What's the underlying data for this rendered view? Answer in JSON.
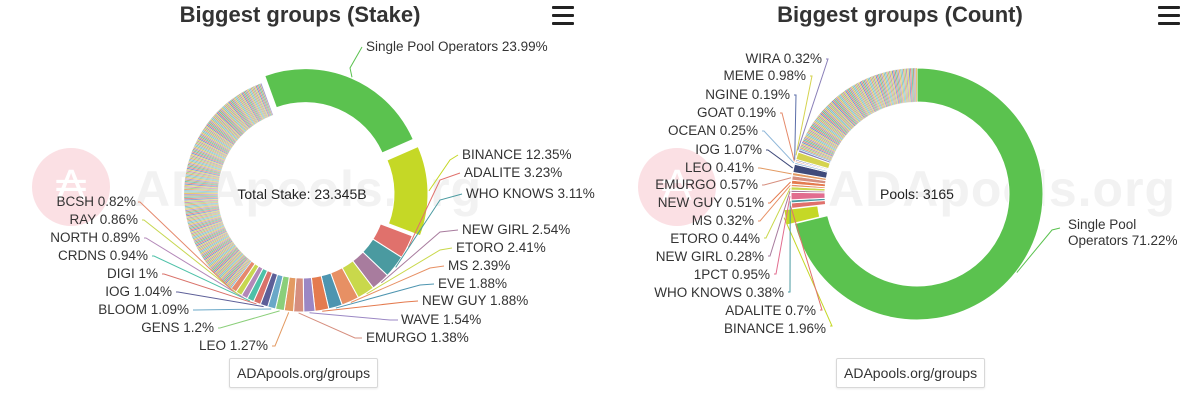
{
  "chart_data": [
    {
      "type": "pie",
      "variant": "donut",
      "title": "Biggest groups (Stake)",
      "center_label": "Total Stake: 23.345B",
      "source": "ADApools.org/groups",
      "labeled_slices": [
        {
          "name": "Single Pool Operators",
          "value": 23.99,
          "label": "Single Pool Operators 23.99%",
          "color": "#5bc24f",
          "exploded": true
        },
        {
          "name": "BINANCE",
          "value": 12.35,
          "label": "BINANCE 12.35%",
          "color": "#c5d826",
          "exploded": true
        },
        {
          "name": "ADALITE",
          "value": 3.23,
          "label": "ADALITE 3.23%",
          "color": "#e0716c"
        },
        {
          "name": "WHO KNOWS",
          "value": 3.11,
          "label": "WHO KNOWS 3.11%",
          "color": "#4a9aa0"
        },
        {
          "name": "NEW GIRL",
          "value": 2.54,
          "label": "NEW GIRL 2.54%",
          "color": "#a87c9e"
        },
        {
          "name": "ETORO",
          "value": 2.41,
          "label": "ETORO 2.41%",
          "color": "#c9d84b"
        },
        {
          "name": "MS",
          "value": 2.39,
          "label": "MS 2.39%",
          "color": "#e79064"
        },
        {
          "name": "EVE",
          "value": 1.88,
          "label": "EVE 1.88%",
          "color": "#4e95b0"
        },
        {
          "name": "NEW GUY",
          "value": 1.88,
          "label": "NEW GUY 1.88%",
          "color": "#e47b4f"
        },
        {
          "name": "WAVE",
          "value": 1.54,
          "label": "WAVE 1.54%",
          "color": "#9b87c4"
        },
        {
          "name": "EMURGO",
          "value": 1.38,
          "label": "EMURGO 1.38%",
          "color": "#d68e7e"
        },
        {
          "name": "LEO",
          "value": 1.27,
          "label": "LEO 1.27%",
          "color": "#e39a62"
        },
        {
          "name": "GENS",
          "value": 1.2,
          "label": "GENS 1.2%",
          "color": "#8bcf7a"
        },
        {
          "name": "BLOOM",
          "value": 1.09,
          "label": "BLOOM 1.09%",
          "color": "#6aa8c8"
        },
        {
          "name": "IOG",
          "value": 1.04,
          "label": "IOG 1.04%",
          "color": "#5d5f98"
        },
        {
          "name": "DIGI",
          "value": 1.0,
          "label": "DIGI 1%",
          "color": "#d9726a"
        },
        {
          "name": "CRDNS",
          "value": 0.94,
          "label": "CRDNS 0.94%",
          "color": "#4ec1a8"
        },
        {
          "name": "NORTH",
          "value": 0.89,
          "label": "NORTH 0.89%",
          "color": "#b388b8"
        },
        {
          "name": "RAY",
          "value": 0.86,
          "label": "RAY 0.86%",
          "color": "#c7d750"
        },
        {
          "name": "BCSH",
          "value": 0.82,
          "label": "BCSH 0.82%",
          "color": "#e5896d"
        }
      ],
      "other_small_slices_total": 34.17
    },
    {
      "type": "pie",
      "variant": "donut",
      "title": "Biggest groups (Count)",
      "center_label": "Pools: 3165",
      "source": "ADApools.org/groups",
      "labeled_slices": [
        {
          "name": "Single Pool Operators",
          "value": 71.22,
          "label_lines": [
            "Single Pool",
            "Operators 71.22%"
          ],
          "color": "#5bc24f"
        },
        {
          "name": "BINANCE",
          "value": 1.96,
          "label": "BINANCE 1.96%",
          "color": "#c5d826",
          "exploded": true
        },
        {
          "name": "ADALITE",
          "value": 0.7,
          "label": "ADALITE 0.7%",
          "color": "#e0716c"
        },
        {
          "name": "WHO KNOWS",
          "value": 0.38,
          "label": "WHO KNOWS 0.38%",
          "color": "#4a9aa0"
        },
        {
          "name": "1PCT",
          "value": 0.95,
          "label": "1PCT 0.95%",
          "color": "#e26d8f"
        },
        {
          "name": "NEW GIRL",
          "value": 0.28,
          "label": "NEW GIRL 0.28%",
          "color": "#a87c9e"
        },
        {
          "name": "ETORO",
          "value": 0.44,
          "label": "ETORO 0.44%",
          "color": "#c9d84b"
        },
        {
          "name": "MS",
          "value": 0.32,
          "label": "MS 0.32%",
          "color": "#e79064"
        },
        {
          "name": "NEW GUY",
          "value": 0.51,
          "label": "NEW GUY 0.51%",
          "color": "#e47b4f"
        },
        {
          "name": "EMURGO",
          "value": 0.57,
          "label": "EMURGO 0.57%",
          "color": "#d68e7e"
        },
        {
          "name": "LEO",
          "value": 0.41,
          "label": "LEO 0.41%",
          "color": "#e39a62"
        },
        {
          "name": "IOG",
          "value": 1.07,
          "label": "IOG 1.07%",
          "color": "#3f4a7a"
        },
        {
          "name": "OCEAN",
          "value": 0.25,
          "label": "OCEAN 0.25%",
          "color": "#8fb7d9"
        },
        {
          "name": "GOAT",
          "value": 0.19,
          "label": "GOAT 0.19%",
          "color": "#e58a6a"
        },
        {
          "name": "NGINE",
          "value": 0.19,
          "label": "NGINE 0.19%",
          "color": "#5b6ea8"
        },
        {
          "name": "MEME",
          "value": 0.98,
          "label": "MEME 0.98%",
          "color": "#d5d34f"
        },
        {
          "name": "WIRA",
          "value": 0.32,
          "label": "WIRA 0.32%",
          "color": "#8a7fb8"
        }
      ],
      "other_small_slices_total": 19.26
    }
  ],
  "ui": {
    "menu_icon": "hamburger-menu-icon",
    "watermark": "ADApools.org",
    "watermark_symbol": "₳"
  }
}
